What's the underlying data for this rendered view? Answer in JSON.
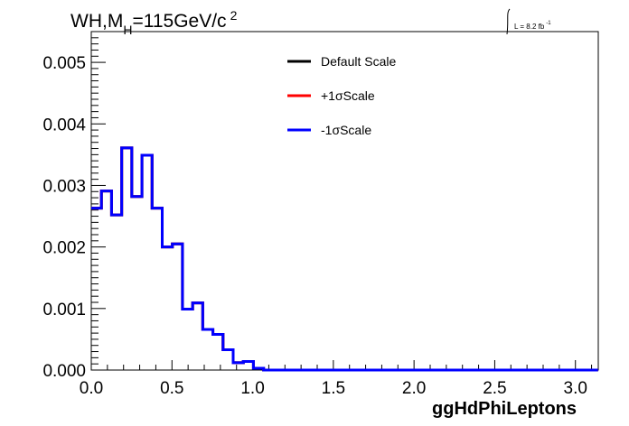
{
  "chart_data": {
    "type": "line",
    "title_main": "WH,M",
    "title_sub": "H",
    "title_rest": "=115GeV/c",
    "title_sup": "2",
    "xlabel": "ggHdPhiLeptons",
    "ylabel": "",
    "xlim": [
      0.0,
      3.1416
    ],
    "ylim": [
      0.0,
      0.0055
    ],
    "xticks": [
      "0.0",
      "0.5",
      "1.0",
      "1.5",
      "2.0",
      "2.5",
      "3.0"
    ],
    "yticks": [
      "0.000",
      "0.001",
      "0.002",
      "0.003",
      "0.004",
      "0.005"
    ],
    "grid": false,
    "legend_position": "top-center",
    "lumi_label": "L = 8.2 fb",
    "lumi_sup": "-1",
    "bin_width": 0.0628,
    "series": [
      {
        "name": "Default Scale",
        "color": "#000000",
        "values": [
          0.00263,
          0.00291,
          0.00252,
          0.00361,
          0.00282,
          0.00349,
          0.00263,
          0.002,
          0.00205,
          0.00099,
          0.00109,
          0.00066,
          0.00058,
          0.00033,
          0.00012,
          0.00014,
          3e-05,
          0,
          0,
          0,
          0,
          0,
          0,
          0,
          0,
          0,
          0,
          0,
          0,
          0,
          0,
          0,
          0,
          0,
          0,
          0,
          0,
          0,
          0,
          0,
          0,
          0,
          0,
          0,
          0,
          0,
          0,
          0,
          0,
          0
        ]
      },
      {
        "name": "+1σScale",
        "color": "#ff0000",
        "values": [
          0.00263,
          0.00291,
          0.00252,
          0.00361,
          0.00282,
          0.00349,
          0.00263,
          0.002,
          0.00205,
          0.00099,
          0.00109,
          0.00066,
          0.00058,
          0.00033,
          0.00012,
          0.00014,
          3e-05,
          0,
          0,
          0,
          0,
          0,
          0,
          0,
          0,
          0,
          0,
          0,
          0,
          0,
          0,
          0,
          0,
          0,
          0,
          0,
          0,
          0,
          0,
          0,
          0,
          0,
          0,
          0,
          0,
          0,
          0,
          0,
          0,
          0
        ]
      },
      {
        "name": "-1σScale",
        "color": "#0000ff",
        "values": [
          0.00263,
          0.00291,
          0.00252,
          0.00361,
          0.00282,
          0.00349,
          0.00263,
          0.002,
          0.00205,
          0.00099,
          0.00109,
          0.00066,
          0.00058,
          0.00033,
          0.00012,
          0.00014,
          3e-05,
          0,
          0,
          0,
          0,
          0,
          0,
          0,
          0,
          0,
          0,
          0,
          0,
          0,
          0,
          0,
          0,
          0,
          0,
          0,
          0,
          0,
          0,
          0,
          0,
          0,
          0,
          0,
          0,
          0,
          0,
          0,
          0,
          0
        ]
      }
    ]
  }
}
